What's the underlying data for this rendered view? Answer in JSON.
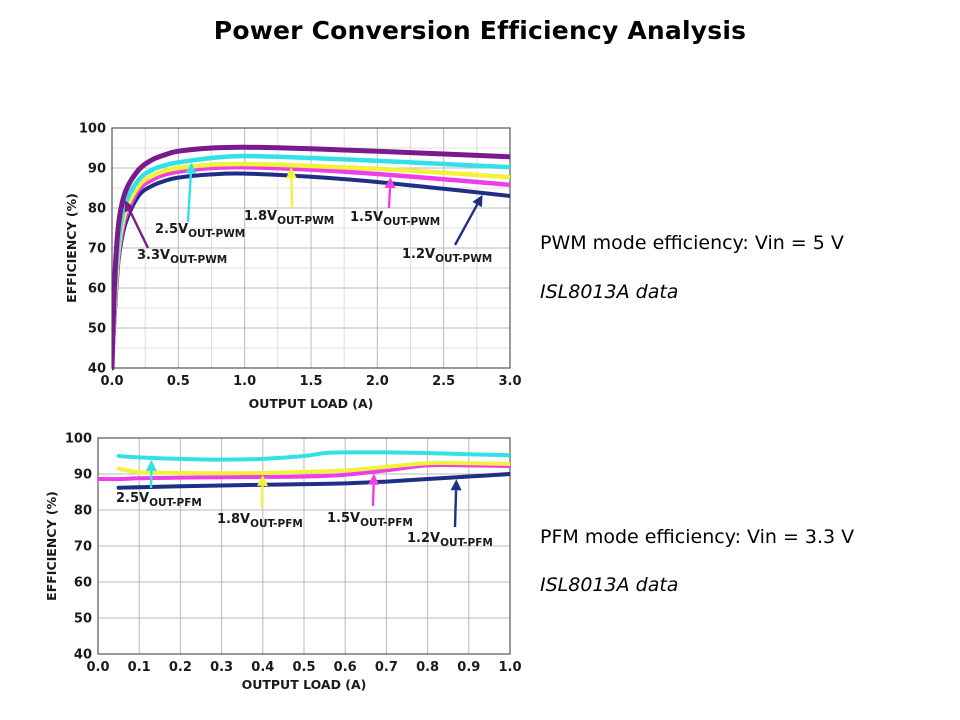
{
  "slide": {
    "title": "Power Conversion Efficiency Analysis"
  },
  "notes": {
    "pwm_desc": "PWM mode efficiency: Vin = 5 V",
    "pwm_source": "ISL8013A data",
    "pfm_desc": "PFM mode efficiency: Vin = 3.3 V",
    "pfm_source": "ISL8013A data"
  },
  "chart_data": [
    {
      "type": "line",
      "xlabel": "OUTPUT LOAD (A)",
      "ylabel": "EFFICIENCY (%)",
      "xlim": [
        0,
        3
      ],
      "ylim": [
        40,
        100
      ],
      "x_ticks": [
        "0.0",
        "0.5",
        "1.0",
        "1.5",
        "2.0",
        "2.5",
        "3.0"
      ],
      "y_ticks": [
        "40",
        "50",
        "60",
        "70",
        "80",
        "90",
        "100"
      ],
      "grid": true,
      "series": [
        {
          "name": "3.3V",
          "sub": "OUT-PWM",
          "color": "#7b1a8c",
          "x": [
            0.0,
            0.02,
            0.05,
            0.1,
            0.2,
            0.3,
            0.4,
            0.5,
            0.75,
            1.0,
            1.5,
            2.0,
            2.5,
            3.0
          ],
          "y": [
            40,
            62,
            76,
            84,
            89.5,
            92,
            93.3,
            94.2,
            95,
            95.2,
            94.8,
            94.2,
            93.5,
            92.8
          ]
        },
        {
          "name": "2.5V",
          "sub": "OUT-PWM",
          "color": "#33e0e8",
          "x": [
            0.0,
            0.02,
            0.05,
            0.1,
            0.2,
            0.3,
            0.4,
            0.5,
            0.75,
            1.0,
            1.5,
            2.0,
            2.5,
            3.0
          ],
          "y": [
            40,
            58,
            72,
            81,
            87,
            89.5,
            90.7,
            91.4,
            92.5,
            93,
            92.5,
            91.8,
            91,
            90.2
          ]
        },
        {
          "name": "1.8V",
          "sub": "OUT-PWM",
          "color": "#f2f23a",
          "x": [
            0.0,
            0.02,
            0.05,
            0.1,
            0.2,
            0.3,
            0.4,
            0.5,
            0.75,
            1.0,
            1.5,
            2.0,
            2.5,
            3.0
          ],
          "y": [
            40,
            56,
            70,
            79,
            85.5,
            88,
            89.3,
            90,
            90.8,
            91,
            90.5,
            89.8,
            88.8,
            87.7
          ]
        },
        {
          "name": "1.5V",
          "sub": "OUT-PWM",
          "color": "#ee3ee8",
          "x": [
            0.0,
            0.02,
            0.05,
            0.1,
            0.2,
            0.3,
            0.4,
            0.5,
            0.75,
            1.0,
            1.5,
            2.0,
            2.5,
            3.0
          ],
          "y": [
            40,
            55,
            68.5,
            77.5,
            84.5,
            87,
            88.4,
            89.1,
            90,
            90.2,
            89.6,
            88.5,
            87.2,
            85.8
          ]
        },
        {
          "name": "1.2V",
          "sub": "OUT-PWM",
          "color": "#1f2f86",
          "x": [
            0.0,
            0.02,
            0.05,
            0.1,
            0.2,
            0.3,
            0.4,
            0.5,
            0.75,
            1.0,
            1.5,
            2.0,
            2.5,
            3.0
          ],
          "y": [
            40,
            53,
            67,
            76,
            83,
            85.5,
            86.8,
            87.6,
            88.4,
            88.6,
            87.8,
            86.5,
            84.8,
            83
          ]
        }
      ],
      "annotations": [
        {
          "series": "3.3V",
          "label": "3.3V",
          "sub": "OUT-PWM"
        },
        {
          "series": "2.5V",
          "label": "2.5V",
          "sub": "OUT-PWM"
        },
        {
          "series": "1.8V",
          "label": "1.8V",
          "sub": "OUT-PWM"
        },
        {
          "series": "1.5V",
          "label": "1.5V",
          "sub": "OUT-PWM"
        },
        {
          "series": "1.2V",
          "label": "1.2V",
          "sub": "OUT-PWM"
        }
      ]
    },
    {
      "type": "line",
      "xlabel": "OUTPUT LOAD (A)",
      "ylabel": "EFFICIENCY (%)",
      "xlim": [
        0,
        1
      ],
      "ylim": [
        40,
        100
      ],
      "x_ticks": [
        "0.0",
        "0.1",
        "0.2",
        "0.3",
        "0.4",
        "0.5",
        "0.6",
        "0.7",
        "0.8",
        "0.9",
        "1.0"
      ],
      "y_ticks": [
        "40",
        "50",
        "60",
        "70",
        "80",
        "90",
        "100"
      ],
      "grid": true,
      "series": [
        {
          "name": "2.5V",
          "sub": "OUT-PFM",
          "color": "#33e0e8",
          "x": [
            0.05,
            0.1,
            0.2,
            0.3,
            0.4,
            0.5,
            0.55,
            0.6,
            0.7,
            0.8,
            0.9,
            1.0
          ],
          "y": [
            95,
            94.6,
            94.2,
            94,
            94.2,
            95,
            95.8,
            96,
            96,
            95.8,
            95.5,
            95.2
          ]
        },
        {
          "name": "1.8V",
          "sub": "OUT-PFM",
          "color": "#f2f23a",
          "x": [
            0.05,
            0.1,
            0.2,
            0.3,
            0.4,
            0.5,
            0.6,
            0.7,
            0.8,
            0.9,
            1.0
          ],
          "y": [
            91.5,
            90.5,
            90.3,
            90.2,
            90.3,
            90.6,
            91,
            92,
            93,
            93,
            92.8
          ]
        },
        {
          "name": "1.5V",
          "sub": "OUT-PFM",
          "color": "#ee3ee8",
          "x": [
            0.0,
            0.05,
            0.1,
            0.2,
            0.3,
            0.4,
            0.5,
            0.6,
            0.7,
            0.8,
            0.9,
            1.0
          ],
          "y": [
            88.6,
            88.6,
            88.8,
            89,
            89.1,
            89.2,
            89.3,
            89.8,
            91,
            92.4,
            92.4,
            92.2
          ]
        },
        {
          "name": "1.2V",
          "sub": "OUT-PFM",
          "color": "#1f2f86",
          "x": [
            0.05,
            0.1,
            0.2,
            0.3,
            0.4,
            0.5,
            0.6,
            0.7,
            0.8,
            0.9,
            1.0
          ],
          "y": [
            86.2,
            86.3,
            86.6,
            86.8,
            87,
            87.2,
            87.4,
            87.9,
            88.6,
            89.3,
            90
          ]
        }
      ],
      "annotations": [
        {
          "series": "2.5V",
          "label": "2.5V",
          "sub": "OUT-PFM"
        },
        {
          "series": "1.8V",
          "label": "1.8V",
          "sub": "OUT-PFM"
        },
        {
          "series": "1.5V",
          "label": "1.5V",
          "sub": "OUT-PFM"
        },
        {
          "series": "1.2V",
          "label": "1.2V",
          "sub": "OUT-PFM"
        }
      ]
    }
  ]
}
